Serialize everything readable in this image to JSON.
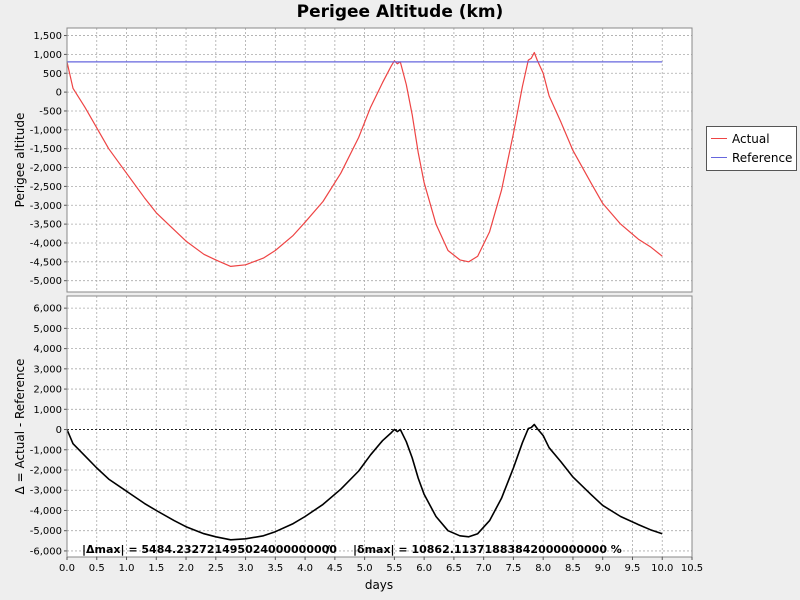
{
  "chart_data": {
    "type": "line",
    "title": "Perigee Altitude (km)",
    "xlabel": "days",
    "xlim": [
      0,
      10.5
    ],
    "x_ticks": [
      "0.0",
      "0.5",
      "1.0",
      "1.5",
      "2.0",
      "2.5",
      "3.0",
      "3.5",
      "4.0",
      "4.5",
      "5.0",
      "5.5",
      "6.0",
      "6.5",
      "7.0",
      "7.5",
      "8.0",
      "8.5",
      "9.0",
      "9.5",
      "10.0",
      "10.5"
    ],
    "grid": true,
    "legend": {
      "placement": "right"
    },
    "panels": [
      {
        "ylabel": "Perigee altitude",
        "ylim": [
          -5300,
          1700
        ],
        "y_ticks": [
          "1,500",
          "1,000",
          "500",
          "0",
          "-500",
          "-1,000",
          "-1,500",
          "-2,000",
          "-2,500",
          "-3,000",
          "-3,500",
          "-4,000",
          "-4,500",
          "-5,000"
        ],
        "series": [
          {
            "name": "Actual",
            "color": "#ee4444",
            "x": [
              0.0,
              0.1,
              0.3,
              0.5,
              0.7,
              1.0,
              1.3,
              1.5,
              1.8,
              2.0,
              2.3,
              2.5,
              2.75,
              3.0,
              3.3,
              3.5,
              3.8,
              4.0,
              4.3,
              4.6,
              4.9,
              5.1,
              5.3,
              5.45,
              5.5,
              5.55,
              5.6,
              5.7,
              5.8,
              5.9,
              6.0,
              6.2,
              6.4,
              6.6,
              6.75,
              6.9,
              7.1,
              7.3,
              7.5,
              7.65,
              7.75,
              7.8,
              7.85,
              7.9,
              8.0,
              8.1,
              8.3,
              8.5,
              8.8,
              9.0,
              9.3,
              9.6,
              9.8,
              10.0
            ],
            "y": [
              800,
              100,
              -400,
              -950,
              -1500,
              -2150,
              -2800,
              -3200,
              -3650,
              -3950,
              -4300,
              -4450,
              -4620,
              -4580,
              -4400,
              -4200,
              -3800,
              -3450,
              -2900,
              -2150,
              -1200,
              -400,
              250,
              700,
              830,
              750,
              800,
              200,
              -600,
              -1600,
              -2400,
              -3500,
              -4200,
              -4450,
              -4500,
              -4350,
              -3700,
              -2600,
              -1100,
              150,
              850,
              900,
              1050,
              850,
              500,
              -100,
              -800,
              -1550,
              -2400,
              -2950,
              -3500,
              -3900,
              -4100,
              -4350
            ]
          },
          {
            "name": "Reference",
            "color": "#6666dd",
            "x": [
              0.0,
              10.0
            ],
            "y": [
              800,
              800
            ]
          }
        ]
      },
      {
        "ylabel": "Δ = Actual - Reference",
        "ylim": [
          -6300,
          6600
        ],
        "y_ticks": [
          "6,000",
          "5,000",
          "4,000",
          "3,000",
          "2,000",
          "1,000",
          "0",
          "-1,000",
          "-2,000",
          "-3,000",
          "-4,000",
          "-5,000",
          "-6,000"
        ],
        "series": [
          {
            "name": "",
            "color": "#000000",
            "x": [
              0.0,
              0.1,
              0.3,
              0.5,
              0.7,
              1.0,
              1.3,
              1.5,
              1.8,
              2.0,
              2.3,
              2.5,
              2.75,
              3.0,
              3.3,
              3.5,
              3.8,
              4.0,
              4.3,
              4.6,
              4.9,
              5.1,
              5.3,
              5.45,
              5.5,
              5.55,
              5.6,
              5.7,
              5.8,
              5.9,
              6.0,
              6.2,
              6.4,
              6.6,
              6.75,
              6.9,
              7.1,
              7.3,
              7.5,
              7.65,
              7.75,
              7.8,
              7.85,
              7.9,
              8.0,
              8.1,
              8.3,
              8.5,
              8.8,
              9.0,
              9.3,
              9.6,
              9.8,
              10.0
            ],
            "y": [
              0,
              -700,
              -1300,
              -1900,
              -2450,
              -3050,
              -3650,
              -4000,
              -4500,
              -4800,
              -5150,
              -5300,
              -5450,
              -5400,
              -5250,
              -5050,
              -4650,
              -4300,
              -3700,
              -2950,
              -2050,
              -1250,
              -550,
              -150,
              0,
              -100,
              0,
              -600,
              -1400,
              -2400,
              -3200,
              -4300,
              -5000,
              -5250,
              -5300,
              -5150,
              -4500,
              -3400,
              -1900,
              -650,
              50,
              100,
              250,
              50,
              -300,
              -900,
              -1600,
              -2350,
              -3200,
              -3750,
              -4300,
              -4700,
              -4950,
              -5150
            ]
          }
        ],
        "zero_line": true
      }
    ],
    "annotations": {
      "delta_max": "|Δmax| = 5484.232721495024000000000",
      "separator": "/",
      "delta_pct": "|δmax| = 10862.11371883842000000000 %"
    }
  }
}
